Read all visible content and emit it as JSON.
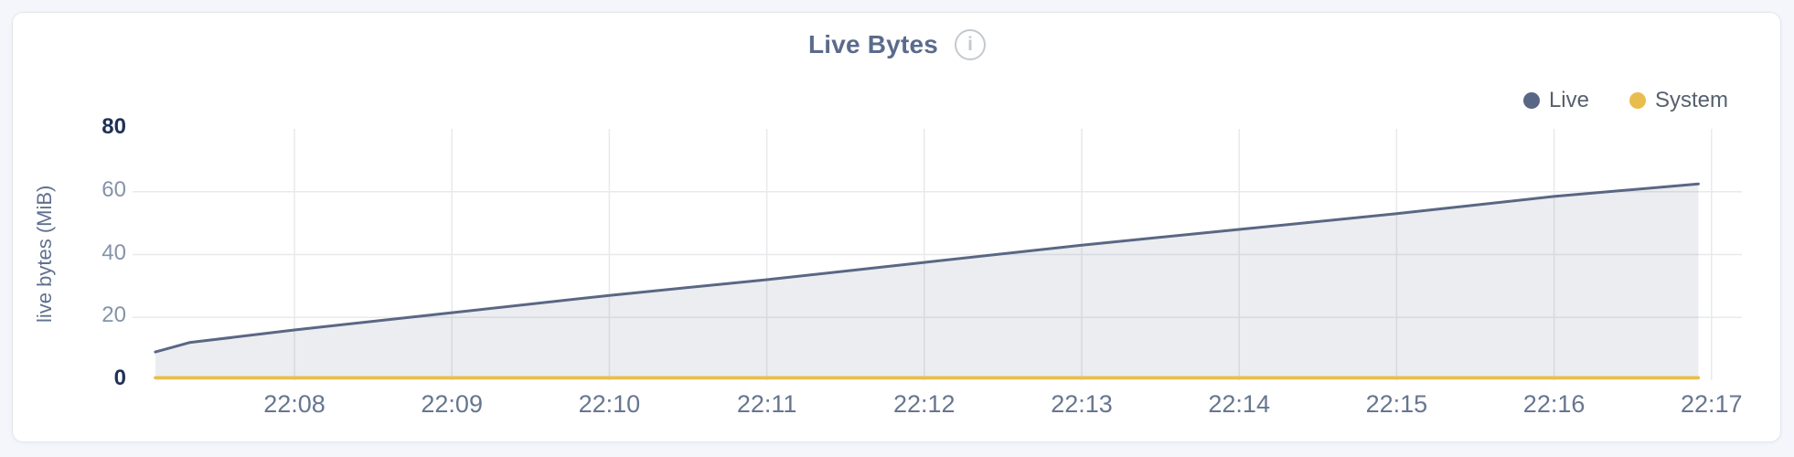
{
  "header": {
    "info_glyph": "i"
  },
  "legend": {
    "items": [
      "Live",
      "System"
    ]
  },
  "chart_data": {
    "type": "area",
    "title": "Live Bytes",
    "ylabel": "live bytes (MiB)",
    "ylim": [
      0,
      80
    ],
    "y_ticks": [
      0,
      20,
      40,
      60,
      80
    ],
    "y_tick_emphasis": [
      0,
      80
    ],
    "x_ticks": [
      "22:08",
      "22:09",
      "22:10",
      "22:11",
      "22:12",
      "22:13",
      "22:14",
      "22:15",
      "22:16",
      "22:17"
    ],
    "grid": true,
    "legend_position": "top-right",
    "series": [
      {
        "name": "Live",
        "color": "#5a6784",
        "fill": "rgba(90,103,132,0.12)",
        "width": 3,
        "points": [
          [
            "22:07:07",
            9
          ],
          [
            "22:07:20",
            12
          ],
          [
            "22:08:00",
            16
          ],
          [
            "22:09:00",
            21.5
          ],
          [
            "22:10:00",
            27
          ],
          [
            "22:11:00",
            32
          ],
          [
            "22:12:00",
            37.5
          ],
          [
            "22:13:00",
            43
          ],
          [
            "22:14:00",
            48
          ],
          [
            "22:15:00",
            53
          ],
          [
            "22:16:00",
            58.5
          ],
          [
            "22:16:55",
            62.5
          ]
        ]
      },
      {
        "name": "System",
        "color": "#e9bd4d",
        "width": 3.5,
        "points": [
          [
            "22:07:07",
            0.8
          ],
          [
            "22:16:55",
            0.8
          ]
        ]
      }
    ]
  },
  "colors": {
    "page_bg": "#f4f6fb",
    "card_bg": "#ffffff",
    "card_border": "#e4e6eb",
    "title": "#5a6b8c",
    "info_icon": "#c4c9cf",
    "legend_text": "#56606d",
    "ylabel": "#5f7090",
    "y_tick_emphasis": "#1f3156",
    "y_tick_normal": "#8593a9",
    "x_tick": "#67768f",
    "grid": "#e8e9ec",
    "live": "#5a6784",
    "system": "#e9bd4d"
  }
}
